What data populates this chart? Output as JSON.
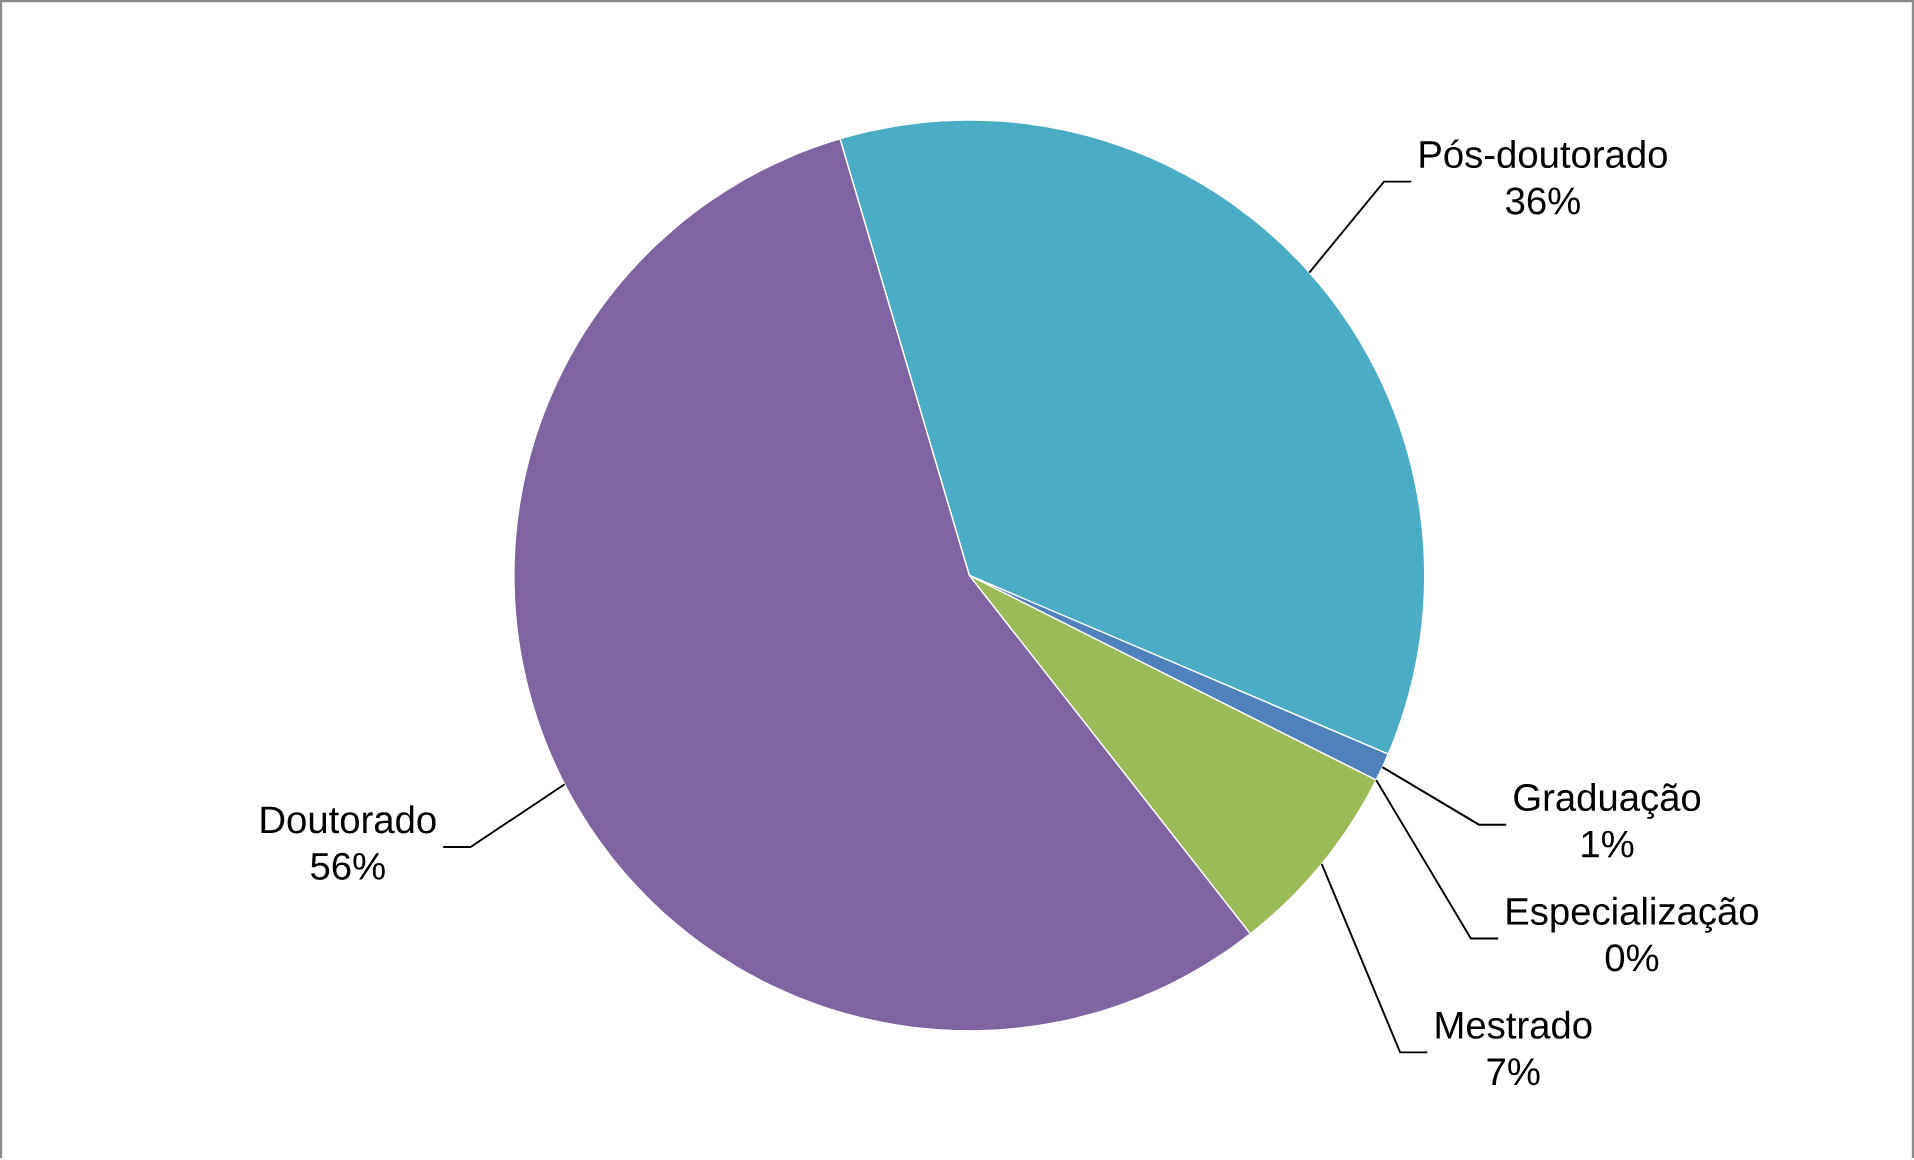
{
  "chart_data": {
    "type": "pie",
    "categories": [
      "Pós-doutorado",
      "Graduação",
      "Especialização",
      "Mestrado",
      "Doutorado"
    ],
    "values": [
      36,
      1,
      0,
      7,
      56
    ],
    "value_labels": [
      "36%",
      "1%",
      "0%",
      "7%",
      "56%"
    ],
    "colors": [
      "#4bacc6",
      "#4f81bd",
      "#c0504d",
      "#9bbb59",
      "#8064a2"
    ]
  }
}
